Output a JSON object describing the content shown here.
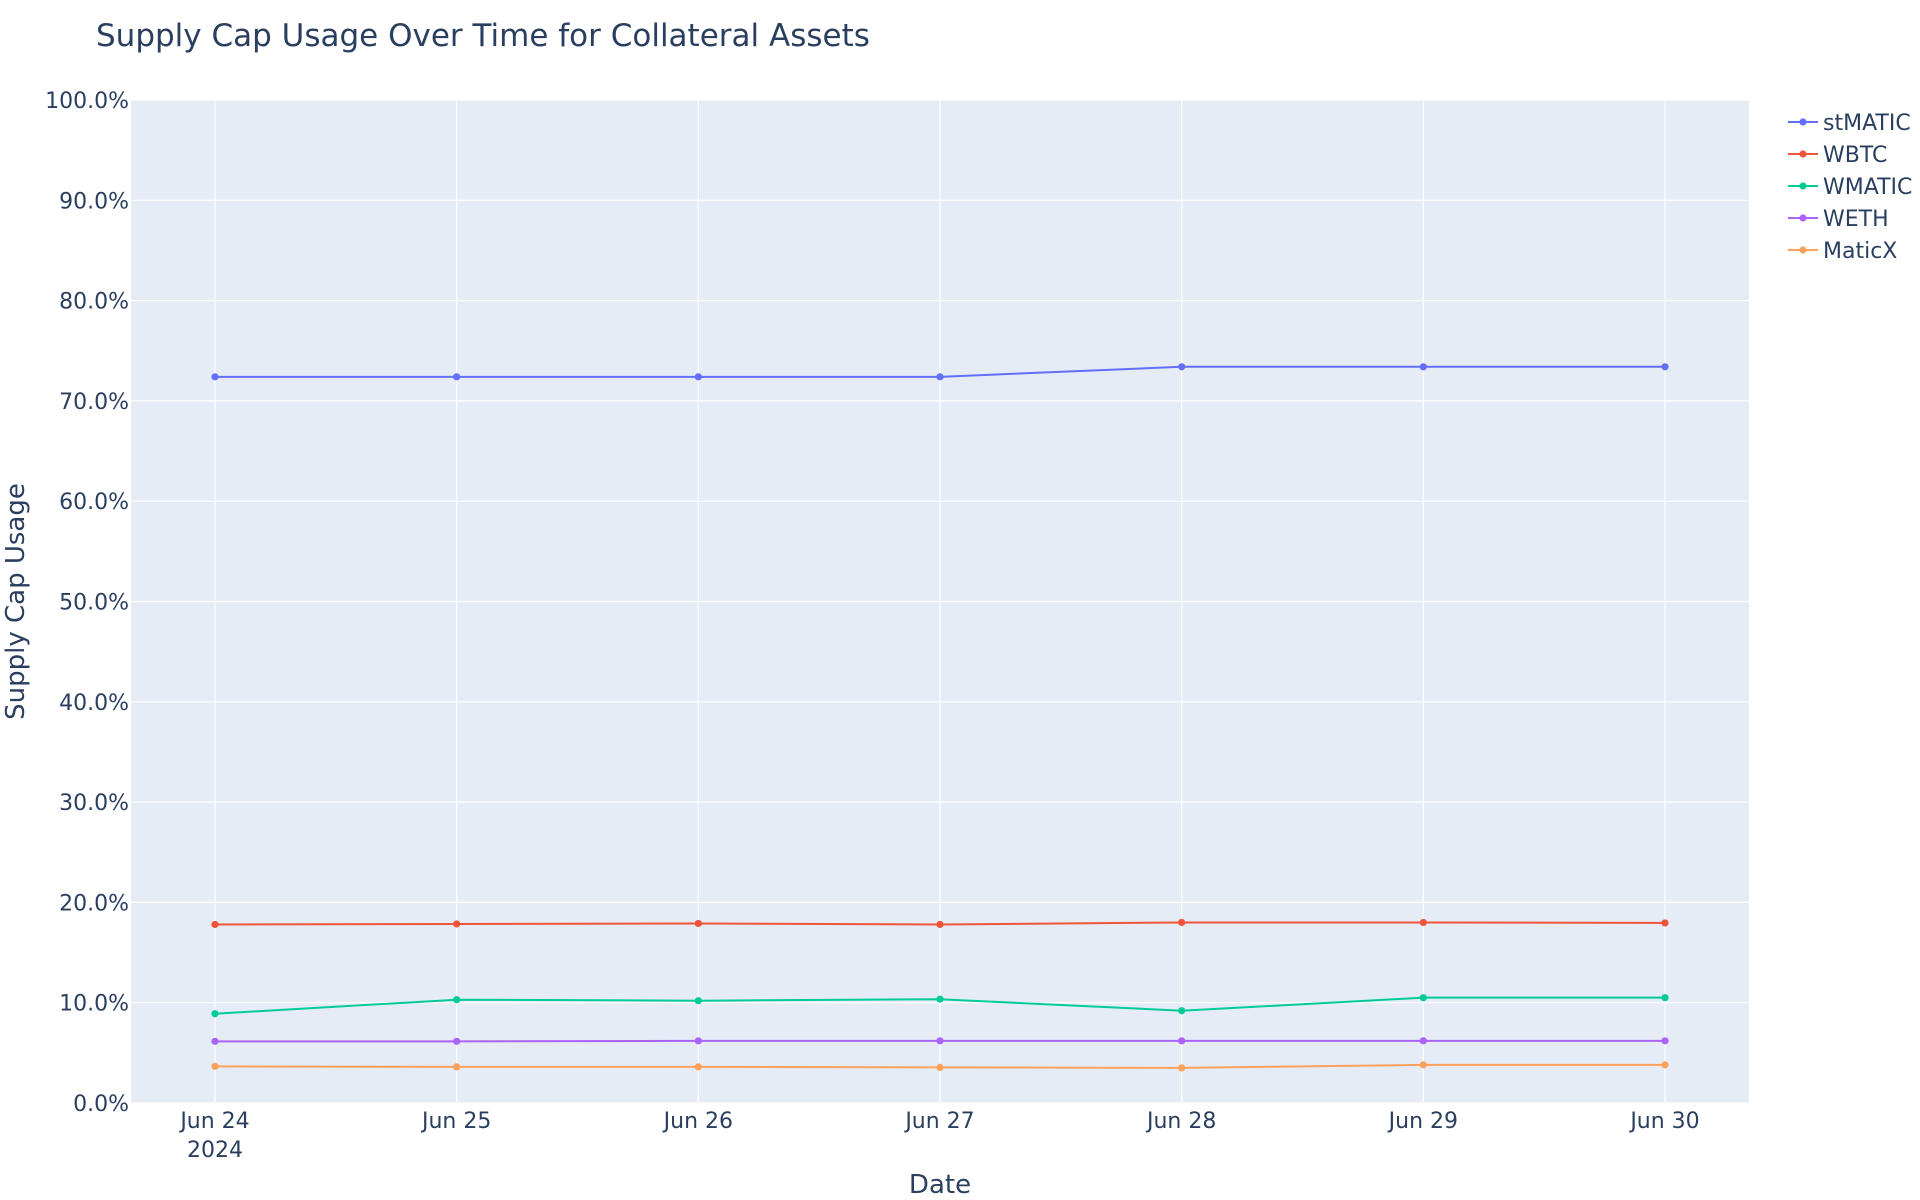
{
  "chart_data": {
    "type": "line",
    "title": "Supply Cap Usage Over Time for Collateral Assets",
    "xlabel": "Date",
    "ylabel": "Supply Cap Usage",
    "x": [
      "Jun 24",
      "Jun 25",
      "Jun 26",
      "Jun 27",
      "Jun 28",
      "Jun 29",
      "Jun 30"
    ],
    "x_year_label": "2024",
    "y_ticks": [
      "0.0%",
      "10.0%",
      "20.0%",
      "30.0%",
      "40.0%",
      "50.0%",
      "60.0%",
      "70.0%",
      "80.0%",
      "90.0%",
      "100.0%"
    ],
    "ylim": [
      0,
      100
    ],
    "grid": true,
    "legend_position": "top-right",
    "plot_background": "#e5ecf6",
    "series": [
      {
        "name": "stMATIC",
        "color": "#636efa",
        "values": [
          72.4,
          72.4,
          72.4,
          72.4,
          73.4,
          73.4,
          73.4
        ]
      },
      {
        "name": "WBTC",
        "color": "#ef553b",
        "values": [
          17.8,
          17.85,
          17.9,
          17.8,
          18.0,
          18.0,
          17.95
        ]
      },
      {
        "name": "WMATIC",
        "color": "#00cc96",
        "values": [
          8.9,
          10.3,
          10.2,
          10.35,
          9.2,
          10.5,
          10.5
        ]
      },
      {
        "name": "WETH",
        "color": "#ab63fa",
        "values": [
          6.15,
          6.15,
          6.2,
          6.2,
          6.2,
          6.2,
          6.2
        ]
      },
      {
        "name": "MaticX",
        "color": "#ffa15a",
        "values": [
          3.65,
          3.6,
          3.6,
          3.55,
          3.5,
          3.8,
          3.8
        ]
      }
    ]
  }
}
